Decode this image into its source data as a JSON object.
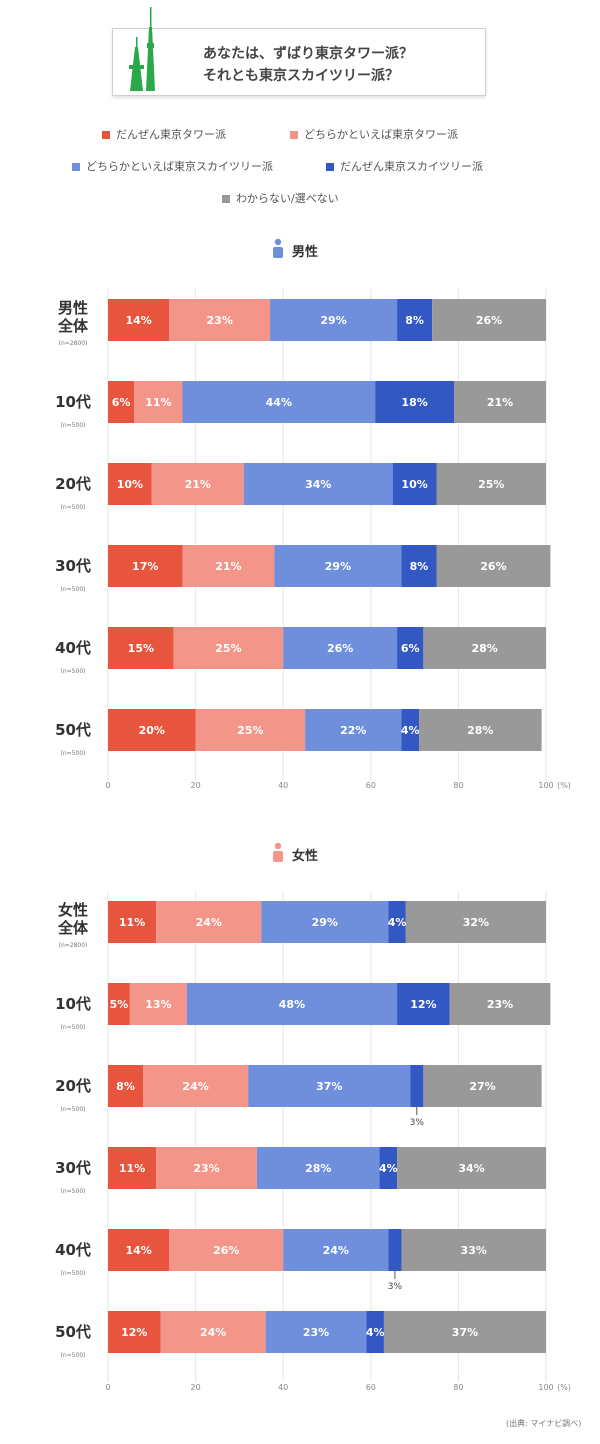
{
  "header": {
    "title_line1": "あなたは、ずばり東京タワー派？",
    "title_line2": "それとも東京スカイツリー派？"
  },
  "legend": [
    {
      "label": "だんぜん東京タワー派",
      "color": "#e8553f"
    },
    {
      "label": "どちらかといえば東京タワー派",
      "color": "#f4958a"
    },
    {
      "label": "どちらかといえば東京スカイツリー派",
      "color": "#6f8fdc"
    },
    {
      "label": "だんぜん東京スカイツリー派",
      "color": "#3358c4"
    },
    {
      "label": "わからない/選べない",
      "color": "#999999"
    }
  ],
  "chart_data": [
    {
      "type": "bar",
      "orientation": "horizontal",
      "stacked": true,
      "title": "男性",
      "categories": [
        "男性全体",
        "10代",
        "20代",
        "30代",
        "40代",
        "50代"
      ],
      "category_notes": [
        "(n=2800)",
        "(n=500)",
        "(n=500)",
        "(n=500)",
        "(n=500)",
        "(n=500)"
      ],
      "series": [
        {
          "name": "だんぜん東京タワー派",
          "values": [
            14,
            6,
            10,
            17,
            15,
            20
          ]
        },
        {
          "name": "どちらかといえば東京タワー派",
          "values": [
            23,
            11,
            21,
            21,
            25,
            25
          ]
        },
        {
          "name": "どちらかといえば東京スカイツリー派",
          "values": [
            29,
            44,
            34,
            29,
            26,
            22
          ]
        },
        {
          "name": "だんぜん東京スカイツリー派",
          "values": [
            8,
            18,
            10,
            8,
            6,
            4
          ]
        },
        {
          "name": "わからない/選べない",
          "values": [
            26,
            21,
            25,
            26,
            28,
            28
          ]
        }
      ],
      "value_suffix": "%",
      "xlim": [
        0,
        100
      ],
      "xticks": [
        "0",
        "20",
        "40",
        "60",
        "80",
        "100"
      ],
      "xunit": "(%)",
      "annotations": []
    },
    {
      "type": "bar",
      "orientation": "horizontal",
      "stacked": true,
      "title": "女性",
      "categories": [
        "女性全体",
        "10代",
        "20代",
        "30代",
        "40代",
        "50代"
      ],
      "category_notes": [
        "(n=2800)",
        "(n=500)",
        "(n=500)",
        "(n=500)",
        "(n=500)",
        "(n=500)"
      ],
      "series": [
        {
          "name": "だんぜん東京タワー派",
          "values": [
            11,
            5,
            8,
            11,
            14,
            12
          ]
        },
        {
          "name": "どちらかといえば東京タワー派",
          "values": [
            24,
            13,
            24,
            23,
            26,
            24
          ]
        },
        {
          "name": "どちらかといえば東京スカイツリー派",
          "values": [
            29,
            48,
            37,
            28,
            24,
            23
          ]
        },
        {
          "name": "だんぜん東京スカイツリー派",
          "values": [
            4,
            12,
            3,
            4,
            3,
            4
          ]
        },
        {
          "name": "わからない/選べない",
          "values": [
            32,
            23,
            27,
            34,
            33,
            37
          ]
        }
      ],
      "value_suffix": "%",
      "xlim": [
        0,
        100
      ],
      "xticks": [
        "0",
        "20",
        "40",
        "60",
        "80",
        "100"
      ],
      "xunit": "(%)",
      "annotations": [
        {
          "category_index": 2,
          "series_index": 3,
          "text": "3%"
        },
        {
          "category_index": 4,
          "series_index": 3,
          "text": "3%"
        }
      ]
    }
  ],
  "footer": {
    "source": "(出典: マイナビ調べ)"
  }
}
